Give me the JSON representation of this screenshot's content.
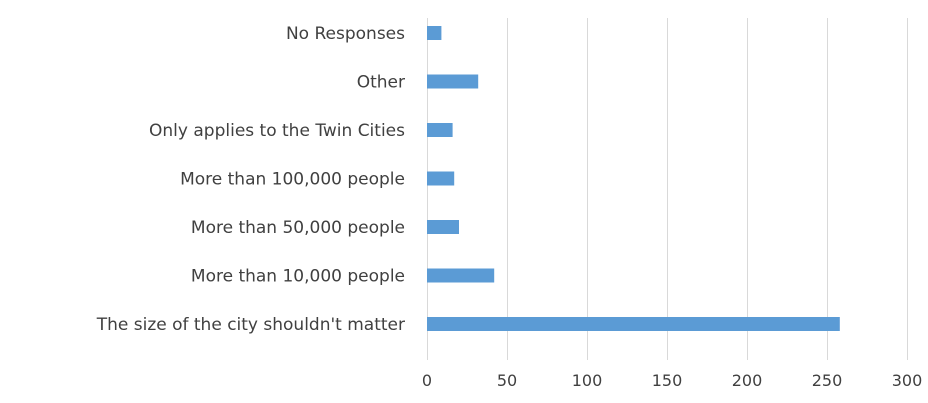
{
  "chart_data": {
    "type": "bar",
    "orientation": "horizontal",
    "categories": [
      "No Responses",
      "Other",
      "Only applies to the Twin Cities",
      "More than 100,000 people",
      "More than 50,000 people",
      "More than 10,000 people",
      "The size of the city shouldn't matter"
    ],
    "values": [
      9,
      32,
      16,
      17,
      20,
      42,
      258
    ],
    "title": "",
    "xlabel": "",
    "ylabel": "",
    "xlim": [
      0,
      300
    ],
    "x_ticks": [
      "0",
      "50",
      "100",
      "150",
      "200",
      "250",
      "300"
    ],
    "grid": "vertical",
    "legend": "none",
    "colors": {
      "bar": "#5b9bd5",
      "grid": "#d9d9d9",
      "text": "#404040"
    }
  }
}
